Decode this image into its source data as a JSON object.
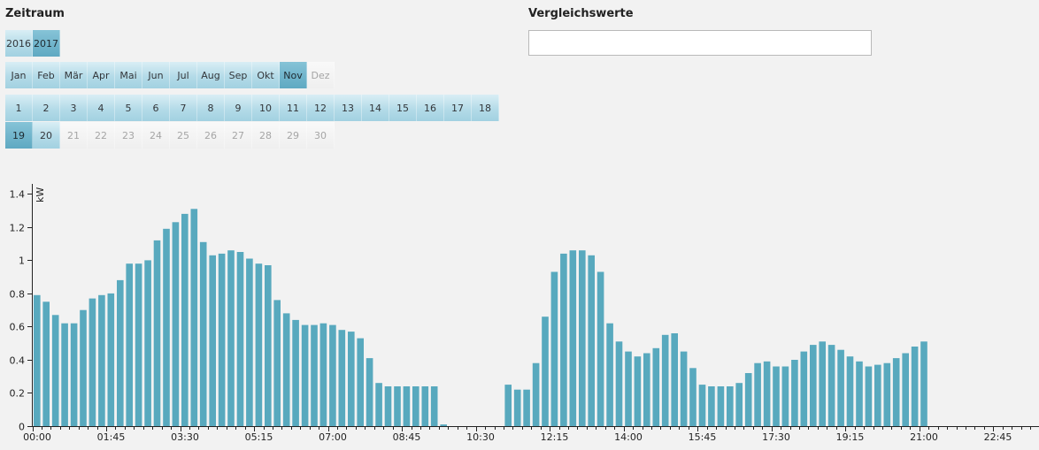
{
  "zeitraum": {
    "title": "Zeitraum",
    "years": [
      {
        "label": "2016",
        "state": "avail"
      },
      {
        "label": "2017",
        "state": "sel"
      }
    ],
    "months": [
      {
        "label": "Jan",
        "state": "avail"
      },
      {
        "label": "Feb",
        "state": "avail"
      },
      {
        "label": "Mär",
        "state": "avail"
      },
      {
        "label": "Apr",
        "state": "avail"
      },
      {
        "label": "Mai",
        "state": "avail"
      },
      {
        "label": "Jun",
        "state": "avail"
      },
      {
        "label": "Jul",
        "state": "avail"
      },
      {
        "label": "Aug",
        "state": "avail"
      },
      {
        "label": "Sep",
        "state": "avail"
      },
      {
        "label": "Okt",
        "state": "avail"
      },
      {
        "label": "Nov",
        "state": "sel"
      },
      {
        "label": "Dez",
        "state": "dis"
      }
    ],
    "days_row1": [
      {
        "label": "1",
        "state": "avail"
      },
      {
        "label": "2",
        "state": "avail"
      },
      {
        "label": "3",
        "state": "avail"
      },
      {
        "label": "4",
        "state": "avail"
      },
      {
        "label": "5",
        "state": "avail"
      },
      {
        "label": "6",
        "state": "avail"
      },
      {
        "label": "7",
        "state": "avail"
      },
      {
        "label": "8",
        "state": "avail"
      },
      {
        "label": "9",
        "state": "avail"
      },
      {
        "label": "10",
        "state": "avail"
      },
      {
        "label": "11",
        "state": "avail"
      },
      {
        "label": "12",
        "state": "avail"
      },
      {
        "label": "13",
        "state": "avail"
      },
      {
        "label": "14",
        "state": "avail"
      },
      {
        "label": "15",
        "state": "avail"
      },
      {
        "label": "16",
        "state": "avail"
      },
      {
        "label": "17",
        "state": "avail"
      },
      {
        "label": "18",
        "state": "avail"
      }
    ],
    "days_row2": [
      {
        "label": "19",
        "state": "sel"
      },
      {
        "label": "20",
        "state": "avail"
      },
      {
        "label": "21",
        "state": "dis"
      },
      {
        "label": "22",
        "state": "dis"
      },
      {
        "label": "23",
        "state": "dis"
      },
      {
        "label": "24",
        "state": "dis"
      },
      {
        "label": "25",
        "state": "dis"
      },
      {
        "label": "26",
        "state": "dis"
      },
      {
        "label": "27",
        "state": "dis"
      },
      {
        "label": "28",
        "state": "dis"
      },
      {
        "label": "29",
        "state": "dis"
      },
      {
        "label": "30",
        "state": "dis"
      }
    ]
  },
  "vergleich": {
    "title": "Vergleichswerte",
    "value": ""
  },
  "colors": {
    "bar": "#58a9be",
    "selected": "#5fa9c2",
    "available": "#b4dbe8",
    "disabled": "#efefef"
  },
  "chart_data": {
    "type": "bar",
    "ylabel": "kW",
    "ylim": [
      0,
      1.45
    ],
    "yticks": [
      0,
      0.2,
      0.4,
      0.6,
      0.8,
      1,
      1.2,
      1.4
    ],
    "ytick_labels": [
      "0",
      "0.2",
      "0.4",
      "0.6",
      "0.8",
      "1",
      "1.2",
      "1.4"
    ],
    "xtick_labels": [
      "00:00",
      "01:45",
      "03:30",
      "05:15",
      "07:00",
      "08:45",
      "10:30",
      "12:15",
      "14:00",
      "15:45",
      "17:30",
      "19:15",
      "21:00",
      "22:45"
    ],
    "grid": false,
    "series": [
      {
        "values": [
          0.79,
          0.75,
          0.67,
          0.62,
          0.62,
          0.7,
          0.77,
          0.79,
          0.8,
          0.88,
          0.98,
          0.98,
          1.0,
          1.12,
          1.19,
          1.23,
          1.28,
          1.31,
          1.11,
          1.03,
          1.04,
          1.06,
          1.05,
          1.01,
          0.98,
          0.97,
          0.76,
          0.68,
          0.64,
          0.61,
          0.61,
          0.62,
          0.61,
          0.58,
          0.57,
          0.53,
          0.41,
          0.26,
          0.24,
          0.24,
          0.24,
          0.24,
          0.24,
          0.24,
          0.01,
          0,
          0,
          0,
          0,
          0,
          0,
          0.25,
          0.22,
          0.22,
          0.38,
          0.66,
          0.93,
          1.04,
          1.06,
          1.06,
          1.03,
          0.93,
          0.62,
          0.51,
          0.45,
          0.42,
          0.44,
          0.47,
          0.55,
          0.56,
          0.45,
          0.35,
          0.25,
          0.24,
          0.24,
          0.24,
          0.26,
          0.32,
          0.38,
          0.39,
          0.36,
          0.36,
          0.4,
          0.45,
          0.49,
          0.51,
          0.49,
          0.46,
          0.42,
          0.39,
          0.36,
          0.37,
          0.38,
          0.41,
          0.44,
          0.48,
          0.51
        ]
      }
    ]
  }
}
